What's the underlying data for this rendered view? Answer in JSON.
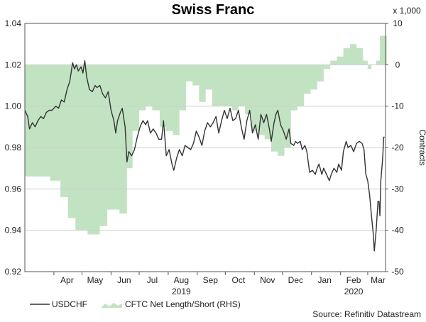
{
  "chart_data": {
    "type": "line+area",
    "title": "Swiss Franc",
    "left_axis": {
      "ticks": [
        "1.04",
        "1.02",
        "1.00",
        "0.98",
        "0.96",
        "0.94",
        "0.92"
      ],
      "min": 0.92,
      "max": 1.04
    },
    "right_axis": {
      "multiplier_label": "x 1,000",
      "label": "Contracts",
      "ticks": [
        "10",
        "0",
        "-10",
        "-20",
        "-30",
        "-40",
        "-50"
      ],
      "min": -50,
      "max": 10
    },
    "x_axis": {
      "start": "2019-03-01",
      "end": "2020-03-20",
      "months": [
        {
          "label": "Apr",
          "date": "2019-04-15"
        },
        {
          "label": "May",
          "date": "2019-05-15"
        },
        {
          "label": "Jun",
          "date": "2019-06-15"
        },
        {
          "label": "Jul",
          "date": "2019-07-15"
        },
        {
          "label": "Aug",
          "date": "2019-08-15"
        },
        {
          "label": "Sep",
          "date": "2019-09-15"
        },
        {
          "label": "Oct",
          "date": "2019-10-15"
        },
        {
          "label": "Nov",
          "date": "2019-11-15"
        },
        {
          "label": "Dec",
          "date": "2019-12-15"
        },
        {
          "label": "Jan",
          "date": "2020-01-15"
        },
        {
          "label": "Feb",
          "date": "2020-02-15"
        },
        {
          "label": "Mar",
          "date": "2020-03-12"
        }
      ],
      "years": [
        {
          "label": "2019",
          "date": "2019-08-15"
        },
        {
          "label": "2020",
          "date": "2020-02-15"
        }
      ]
    },
    "series": [
      {
        "name": "USDCHF",
        "color": "#333333",
        "axis": "left",
        "points": [
          [
            "2019-03-01",
            0.998
          ],
          [
            "2019-03-04",
            0.995
          ],
          [
            "2019-03-06",
            0.989
          ],
          [
            "2019-03-09",
            0.992
          ],
          [
            "2019-03-12",
            0.99
          ],
          [
            "2019-03-15",
            0.993
          ],
          [
            "2019-03-18",
            0.995
          ],
          [
            "2019-03-21",
            0.994
          ],
          [
            "2019-03-24",
            0.997
          ],
          [
            "2019-03-27",
            0.998
          ],
          [
            "2019-03-30",
            0.998
          ],
          [
            "2019-04-03",
            1.0
          ],
          [
            "2019-04-06",
            0.999
          ],
          [
            "2019-04-09",
            1.003
          ],
          [
            "2019-04-12",
            1.002
          ],
          [
            "2019-04-15",
            1.008
          ],
          [
            "2019-04-18",
            1.012
          ],
          [
            "2019-04-21",
            1.021
          ],
          [
            "2019-04-23",
            1.018
          ],
          [
            "2019-04-25",
            1.02
          ],
          [
            "2019-04-27",
            1.017
          ],
          [
            "2019-04-30",
            1.019
          ],
          [
            "2019-05-02",
            1.016
          ],
          [
            "2019-05-04",
            1.022
          ],
          [
            "2019-05-06",
            1.014
          ],
          [
            "2019-05-09",
            1.008
          ],
          [
            "2019-05-12",
            1.007
          ],
          [
            "2019-05-15",
            1.01
          ],
          [
            "2019-05-17",
            1.009
          ],
          [
            "2019-05-20",
            1.01
          ],
          [
            "2019-05-23",
            1.006
          ],
          [
            "2019-05-26",
            1.004
          ],
          [
            "2019-05-29",
            1.007
          ],
          [
            "2019-06-01",
            0.998
          ],
          [
            "2019-06-04",
            0.993
          ],
          [
            "2019-06-06",
            0.987
          ],
          [
            "2019-06-08",
            0.993
          ],
          [
            "2019-06-11",
            0.997
          ],
          [
            "2019-06-13",
            0.999
          ],
          [
            "2019-06-16",
            0.99
          ],
          [
            "2019-06-18",
            0.973
          ],
          [
            "2019-06-20",
            0.978
          ],
          [
            "2019-06-23",
            0.976
          ],
          [
            "2019-06-26",
            0.979
          ],
          [
            "2019-06-29",
            0.985
          ],
          [
            "2019-07-02",
            0.99
          ],
          [
            "2019-07-05",
            0.993
          ],
          [
            "2019-07-08",
            0.991
          ],
          [
            "2019-07-10",
            0.993
          ],
          [
            "2019-07-13",
            0.987
          ],
          [
            "2019-07-16",
            0.989
          ],
          [
            "2019-07-19",
            0.987
          ],
          [
            "2019-07-22",
            0.984
          ],
          [
            "2019-07-25",
            0.984
          ],
          [
            "2019-07-27",
            0.993
          ],
          [
            "2019-07-30",
            0.976
          ],
          [
            "2019-08-02",
            0.979
          ],
          [
            "2019-08-05",
            0.972
          ],
          [
            "2019-08-07",
            0.969
          ],
          [
            "2019-08-10",
            0.975
          ],
          [
            "2019-08-13",
            0.979
          ],
          [
            "2019-08-16",
            0.976
          ],
          [
            "2019-08-19",
            0.981
          ],
          [
            "2019-08-22",
            0.98
          ],
          [
            "2019-08-25",
            0.979
          ],
          [
            "2019-08-28",
            0.982
          ],
          [
            "2019-08-31",
            0.988
          ],
          [
            "2019-09-03",
            0.985
          ],
          [
            "2019-09-06",
            0.981
          ],
          [
            "2019-09-09",
            0.988
          ],
          [
            "2019-09-12",
            0.992
          ],
          [
            "2019-09-15",
            0.99
          ],
          [
            "2019-09-18",
            0.992
          ],
          [
            "2019-09-21",
            0.995
          ],
          [
            "2019-09-24",
            0.987
          ],
          [
            "2019-09-27",
            0.993
          ],
          [
            "2019-09-30",
            0.998
          ],
          [
            "2019-10-03",
            0.994
          ],
          [
            "2019-10-06",
            0.999
          ],
          [
            "2019-10-09",
            0.993
          ],
          [
            "2019-10-12",
            0.994
          ],
          [
            "2019-10-15",
            0.998
          ],
          [
            "2019-10-18",
            0.99
          ],
          [
            "2019-10-21",
            0.984
          ],
          [
            "2019-10-24",
            0.993
          ],
          [
            "2019-10-27",
            0.998
          ],
          [
            "2019-10-30",
            0.987
          ],
          [
            "2019-11-02",
            0.991
          ],
          [
            "2019-11-05",
            0.984
          ],
          [
            "2019-11-08",
            0.996
          ],
          [
            "2019-11-11",
            0.992
          ],
          [
            "2019-11-14",
            0.996
          ],
          [
            "2019-11-17",
            0.989
          ],
          [
            "2019-11-19",
            0.983
          ],
          [
            "2019-11-22",
            0.992
          ],
          [
            "2019-11-24",
            0.996
          ],
          [
            "2019-11-26",
            0.998
          ],
          [
            "2019-11-29",
            0.991
          ],
          [
            "2019-12-02",
            0.988
          ],
          [
            "2019-12-05",
            0.984
          ],
          [
            "2019-12-08",
            0.989
          ],
          [
            "2019-12-10",
            0.982
          ],
          [
            "2019-12-13",
            0.981
          ],
          [
            "2019-12-15",
            0.983
          ],
          [
            "2019-12-17",
            0.982
          ],
          [
            "2019-12-20",
            0.983
          ],
          [
            "2019-12-22",
            0.979
          ],
          [
            "2019-12-25",
            0.981
          ],
          [
            "2019-12-27",
            0.978
          ],
          [
            "2019-12-30",
            0.968
          ],
          [
            "2020-01-02",
            0.969
          ],
          [
            "2020-01-05",
            0.967
          ],
          [
            "2020-01-07",
            0.97
          ],
          [
            "2020-01-09",
            0.972
          ],
          [
            "2020-01-12",
            0.967
          ],
          [
            "2020-01-14",
            0.97
          ],
          [
            "2020-01-17",
            0.967
          ],
          [
            "2020-01-20",
            0.964
          ],
          [
            "2020-01-22",
            0.967
          ],
          [
            "2020-01-25",
            0.97
          ],
          [
            "2020-01-28",
            0.968
          ],
          [
            "2020-01-30",
            0.972
          ],
          [
            "2020-02-02",
            0.969
          ],
          [
            "2020-02-04",
            0.978
          ],
          [
            "2020-02-07",
            0.983
          ],
          [
            "2020-02-09",
            0.98
          ],
          [
            "2020-02-12",
            0.981
          ],
          [
            "2020-02-15",
            0.978
          ],
          [
            "2020-02-18",
            0.982
          ],
          [
            "2020-02-21",
            0.983
          ],
          [
            "2020-02-24",
            0.982
          ],
          [
            "2020-02-26",
            0.979
          ],
          [
            "2020-02-28",
            0.967
          ],
          [
            "2020-03-01",
            0.964
          ],
          [
            "2020-03-03",
            0.957
          ],
          [
            "2020-03-05",
            0.947
          ],
          [
            "2020-03-07",
            0.938
          ],
          [
            "2020-03-08",
            0.93
          ],
          [
            "2020-03-10",
            0.94
          ],
          [
            "2020-03-12",
            0.954
          ],
          [
            "2020-03-13",
            0.954
          ],
          [
            "2020-03-14",
            0.947
          ],
          [
            "2020-03-15",
            0.964
          ],
          [
            "2020-03-17",
            0.975
          ],
          [
            "2020-03-18",
            0.985
          ],
          [
            "2020-03-19",
            0.985
          ]
        ]
      },
      {
        "name": "CFTC Net Length/Short (RHS)",
        "color": "#c2e3c2",
        "axis": "right",
        "steps": [
          [
            "2019-03-01",
            -27
          ],
          [
            "2019-03-28",
            -28
          ],
          [
            "2019-04-08",
            -32
          ],
          [
            "2019-04-16",
            -37
          ],
          [
            "2019-04-24",
            -40
          ],
          [
            "2019-05-07",
            -41
          ],
          [
            "2019-05-20",
            -39
          ],
          [
            "2019-05-28",
            -35
          ],
          [
            "2019-06-10",
            -36
          ],
          [
            "2019-06-18",
            -25
          ],
          [
            "2019-06-24",
            -16
          ],
          [
            "2019-07-01",
            -11
          ],
          [
            "2019-07-08",
            -10
          ],
          [
            "2019-07-15",
            -11
          ],
          [
            "2019-07-23",
            -15
          ],
          [
            "2019-07-29",
            -16
          ],
          [
            "2019-08-06",
            -17
          ],
          [
            "2019-08-13",
            -11
          ],
          [
            "2019-08-20",
            -4
          ],
          [
            "2019-08-27",
            -5
          ],
          [
            "2019-09-03",
            -9
          ],
          [
            "2019-09-10",
            -6
          ],
          [
            "2019-09-17",
            -10
          ],
          [
            "2019-09-24",
            -10
          ],
          [
            "2019-10-01",
            -10
          ],
          [
            "2019-10-08",
            -11
          ],
          [
            "2019-10-15",
            -10
          ],
          [
            "2019-10-22",
            -12
          ],
          [
            "2019-10-29",
            -16
          ],
          [
            "2019-11-05",
            -17
          ],
          [
            "2019-11-12",
            -18
          ],
          [
            "2019-11-19",
            -21
          ],
          [
            "2019-11-26",
            -22
          ],
          [
            "2019-12-03",
            -20
          ],
          [
            "2019-12-10",
            -11
          ],
          [
            "2019-12-17",
            -10
          ],
          [
            "2019-12-24",
            -7
          ],
          [
            "2019-12-31",
            -6
          ],
          [
            "2020-01-07",
            -4
          ],
          [
            "2020-01-14",
            -1
          ],
          [
            "2020-01-21",
            1
          ],
          [
            "2020-01-28",
            2
          ],
          [
            "2020-02-04",
            4
          ],
          [
            "2020-02-11",
            5
          ],
          [
            "2020-02-18",
            4
          ],
          [
            "2020-02-25",
            1
          ],
          [
            "2020-03-01",
            -1
          ],
          [
            "2020-03-05",
            0
          ],
          [
            "2020-03-10",
            1
          ],
          [
            "2020-03-14",
            7
          ],
          [
            "2020-03-19",
            7
          ]
        ]
      }
    ],
    "legend": [
      "USDCHF",
      "CFTC Net Length/Short (RHS)"
    ],
    "source": "Source: Refinitiv Datastream"
  }
}
